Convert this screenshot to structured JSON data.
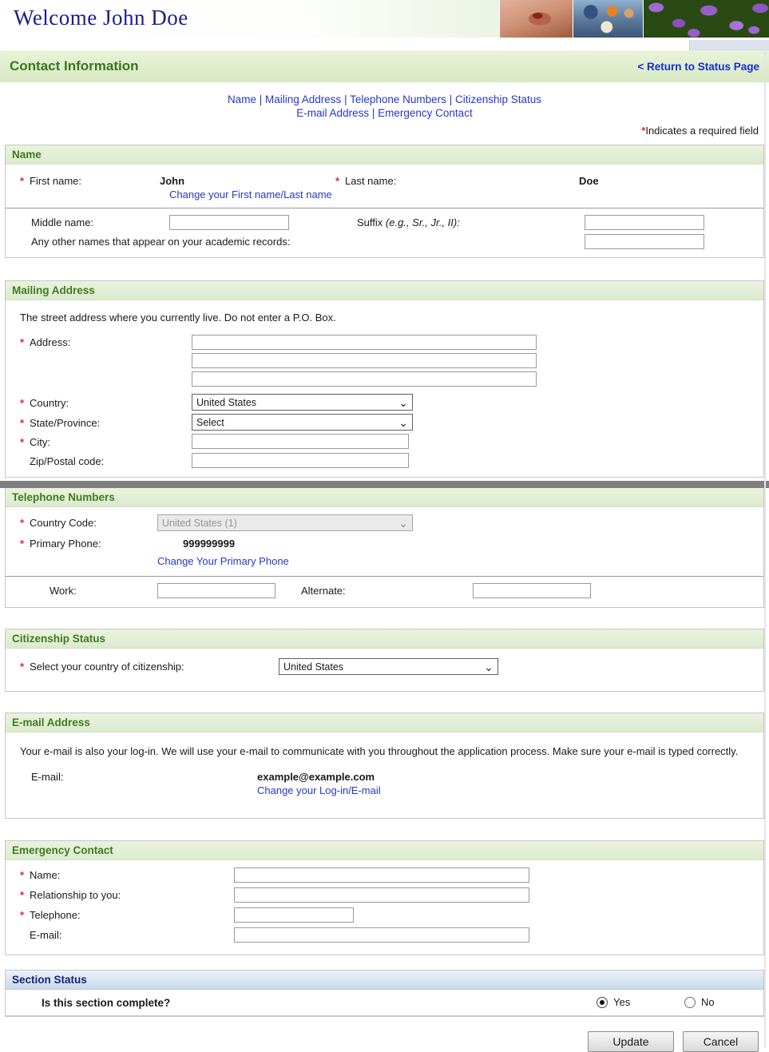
{
  "banner": {
    "welcome": "Welcome John Doe",
    "photos": [
      "mosquito-skin-photo",
      "community-health-photo",
      "purple-bacteria-photo"
    ]
  },
  "title_bar": {
    "title": "Contact Information",
    "return_link": "< Return to Status Page"
  },
  "nav": {
    "separator": "|",
    "line1_links": [
      "Name",
      "Mailing Address",
      "Telephone Numbers",
      "Citizenship Status"
    ],
    "line2_links": [
      "E-mail Address",
      "Emergency Contact"
    ]
  },
  "required_note": {
    "marker": "*",
    "text": "Indicates a required field"
  },
  "common": {
    "asterisk": "*",
    "chevron": "⌄"
  },
  "name_section": {
    "header": "Name",
    "first_name_label": "First name:",
    "first_name_value": "John",
    "last_name_label": "Last name:",
    "last_name_value": "Doe",
    "change_name_link": "Change your First name/Last name",
    "middle_name_label": "Middle name:",
    "suffix_label": "Suffix",
    "suffix_hint": "(e.g., Sr., Jr., II):",
    "other_names_label": "Any other names that appear on your academic records:"
  },
  "mailing_section": {
    "header": "Mailing Address",
    "intro": "The street address where you currently live. Do not enter a P.O. Box.",
    "address_label": "Address:",
    "country_label": "Country:",
    "country_value": "United States",
    "state_label": "State/Province:",
    "state_value": "Select",
    "city_label": "City:",
    "zip_label": "Zip/Postal code:"
  },
  "telephone_section": {
    "header": "Telephone Numbers",
    "country_code_label": "Country Code:",
    "country_code_value": "United States (1)",
    "primary_phone_label": "Primary Phone:",
    "primary_phone_value": "999999999",
    "change_phone_link": "Change Your Primary Phone",
    "work_label": "Work:",
    "alternate_label": "Alternate:"
  },
  "citizenship_section": {
    "header": "Citizenship Status",
    "citizenship_label": "Select your country of citizenship:",
    "citizenship_value": "United States"
  },
  "email_section": {
    "header": "E-mail Address",
    "intro": "Your e-mail is also your log-in. We will use your e-mail to communicate with you throughout the application process. Make sure your e-mail is typed correctly.",
    "email_label": "E-mail:",
    "email_value": "example@example.com",
    "change_email_link": "Change your Log-in/E-mail"
  },
  "emergency_section": {
    "header": "Emergency Contact",
    "name_label": "Name:",
    "relationship_label": "Relationship to you:",
    "telephone_label": "Telephone:",
    "email_label": "E-mail:"
  },
  "status_section": {
    "header": "Section Status",
    "question": "Is this section complete?",
    "yes_label": "Yes",
    "no_label": "No",
    "selected": "Yes"
  },
  "buttons": {
    "update": "Update",
    "cancel": "Cancel"
  },
  "colors": {
    "section_header_green": "#3e7c1f",
    "link_blue": "#2438c8",
    "required_red": "#e02b20",
    "status_navy": "#16227e",
    "divider_gray": "#7f7f7f"
  }
}
